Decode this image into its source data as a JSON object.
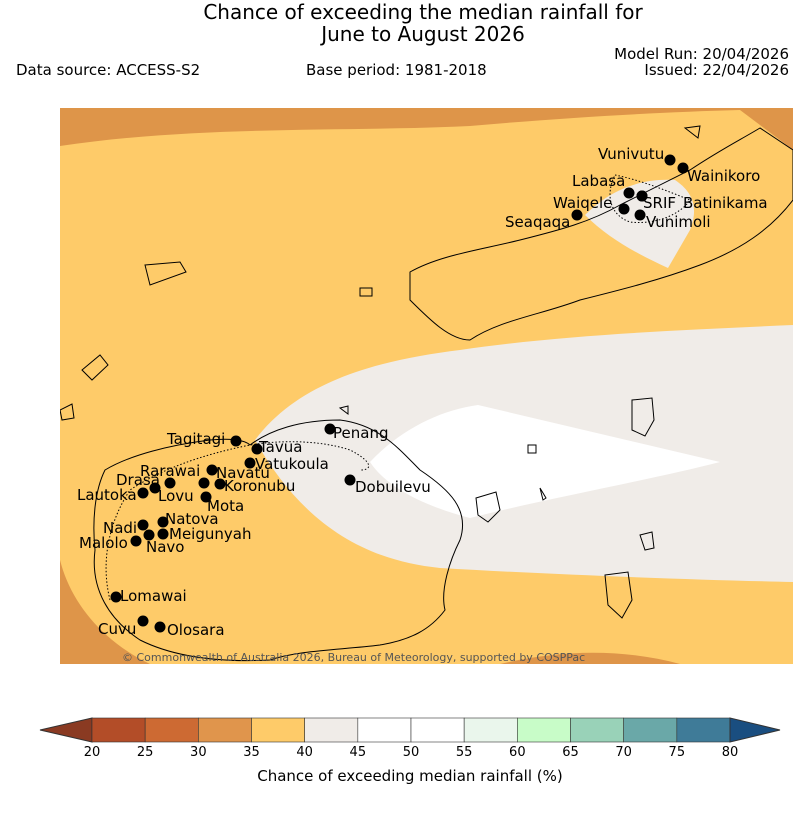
{
  "title": {
    "line1": "Chance of exceeding the median rainfall for",
    "line2": "June to August 2026"
  },
  "header": {
    "data_source": "Data source: ACCESS-S2",
    "base_period": "Base period: 1981-2018",
    "model_run": "Model Run: 20/04/2026",
    "issued": "Issued: 22/04/2026"
  },
  "copyright": "© Commonwealth of Australia 2026, Bureau of Meteorology, supported by COSPPac",
  "places": [
    "Vunivutu",
    "Wainikoro",
    "Labasa",
    "Waiqele",
    "SRIF",
    "Batinikama",
    "Seaqaqa",
    "Vunimoli",
    "Penang",
    "Tagitagi",
    "Tavua",
    "Vatukoula",
    "Rarawai",
    "Navatu",
    "Drasa",
    "Lovu",
    "Koronubu",
    "Lautoka",
    "Mota",
    "Natova",
    "Nadi",
    "Meigunyah",
    "Malolo",
    "Navo",
    "Lomawai",
    "Cuvu",
    "Olosara",
    "Dobuilevu"
  ],
  "colorbar": {
    "ticks": [
      "20",
      "25",
      "30",
      "35",
      "40",
      "45",
      "50",
      "55",
      "60",
      "65",
      "70",
      "75",
      "80"
    ],
    "colors": [
      "#b34d28",
      "#cd6a33",
      "#e0954c",
      "#fecb69",
      "#f0ece8",
      "#ffffff",
      "#ffffff",
      "#eaf6ec",
      "#c8fcc8",
      "#99d2b8",
      "#6aa8a8",
      "#3f7b98"
    ],
    "under_color": "#8a3a22",
    "over_color": "#1a4e80",
    "label": "Chance of exceeding median rainfall (%)"
  },
  "legend_colors": {
    "orange_dark": "#de9549",
    "orange_light": "#fecb69",
    "neutral": "#f0ece8",
    "white": "#ffffff"
  }
}
